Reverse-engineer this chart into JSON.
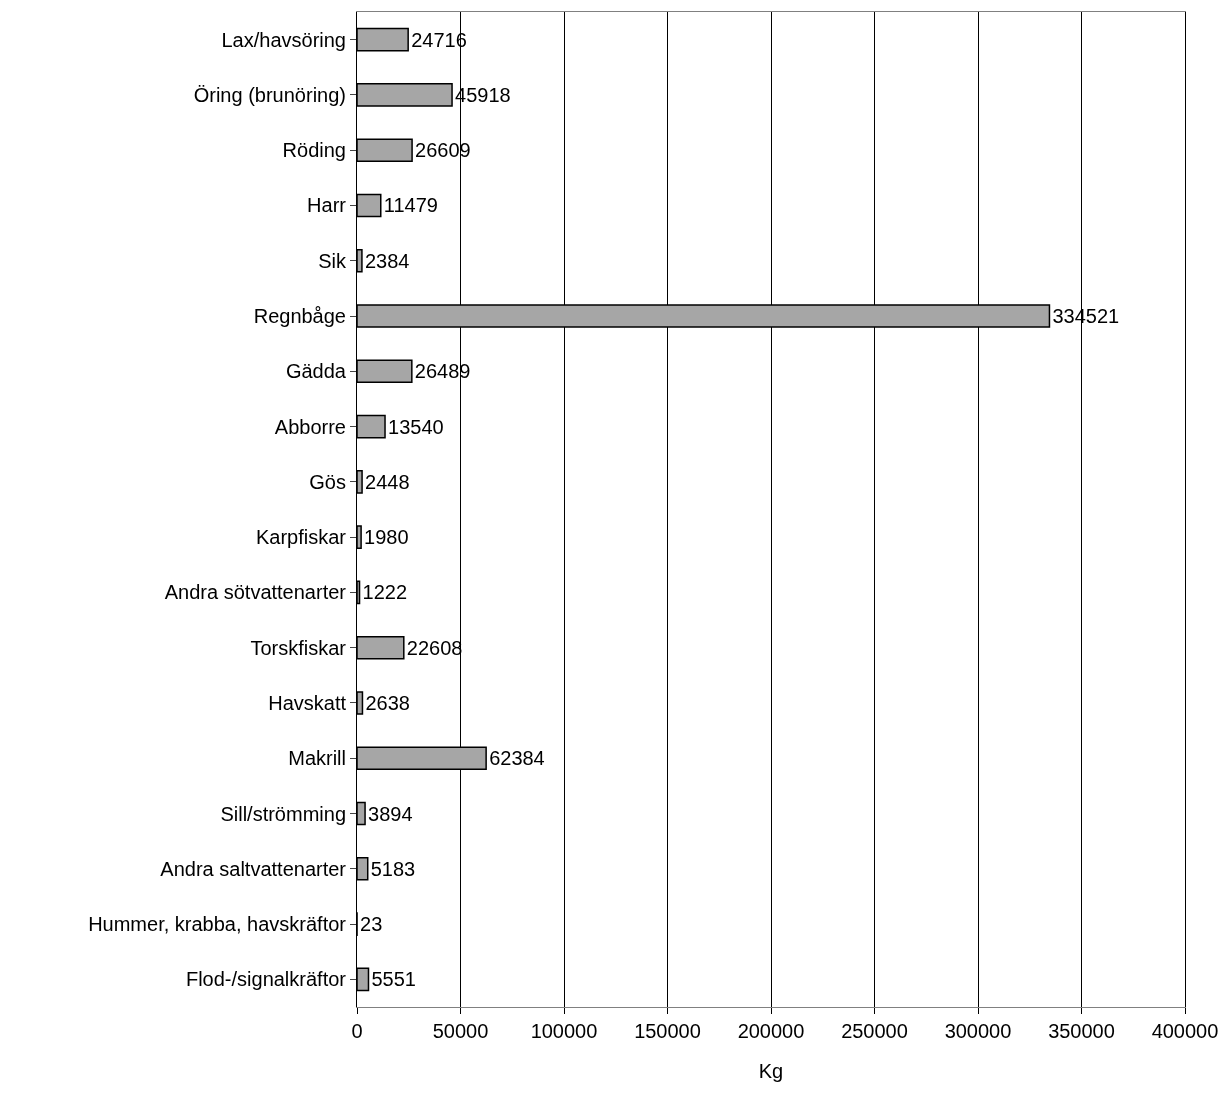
{
  "chart_data": {
    "type": "bar",
    "orientation": "horizontal",
    "xlabel": "Kg",
    "categories": [
      "Lax/havsöring",
      "Öring (brunöring)",
      "Röding",
      "Harr",
      "Sik",
      "Regnbåge",
      "Gädda",
      "Abborre",
      "Gös",
      "Karpfiskar",
      "Andra sötvattenarter",
      "Torskfiskar",
      "Havskatt",
      "Makrill",
      "Sill/strömming",
      "Andra saltvattenarter",
      "Hummer, krabba, havskräftor",
      "Flod-/signalkräftor"
    ],
    "values": [
      24716,
      45918,
      26609,
      11479,
      2384,
      334521,
      26489,
      13540,
      2448,
      1980,
      1222,
      22608,
      2638,
      62384,
      3894,
      5183,
      23,
      5551
    ],
    "color": "#a6a6a6",
    "xlim": [
      0,
      400000
    ],
    "xticks": [
      0,
      50000,
      100000,
      150000,
      200000,
      250000,
      300000,
      350000,
      400000
    ],
    "grid": "x",
    "data_labels": true,
    "legend": false
  }
}
